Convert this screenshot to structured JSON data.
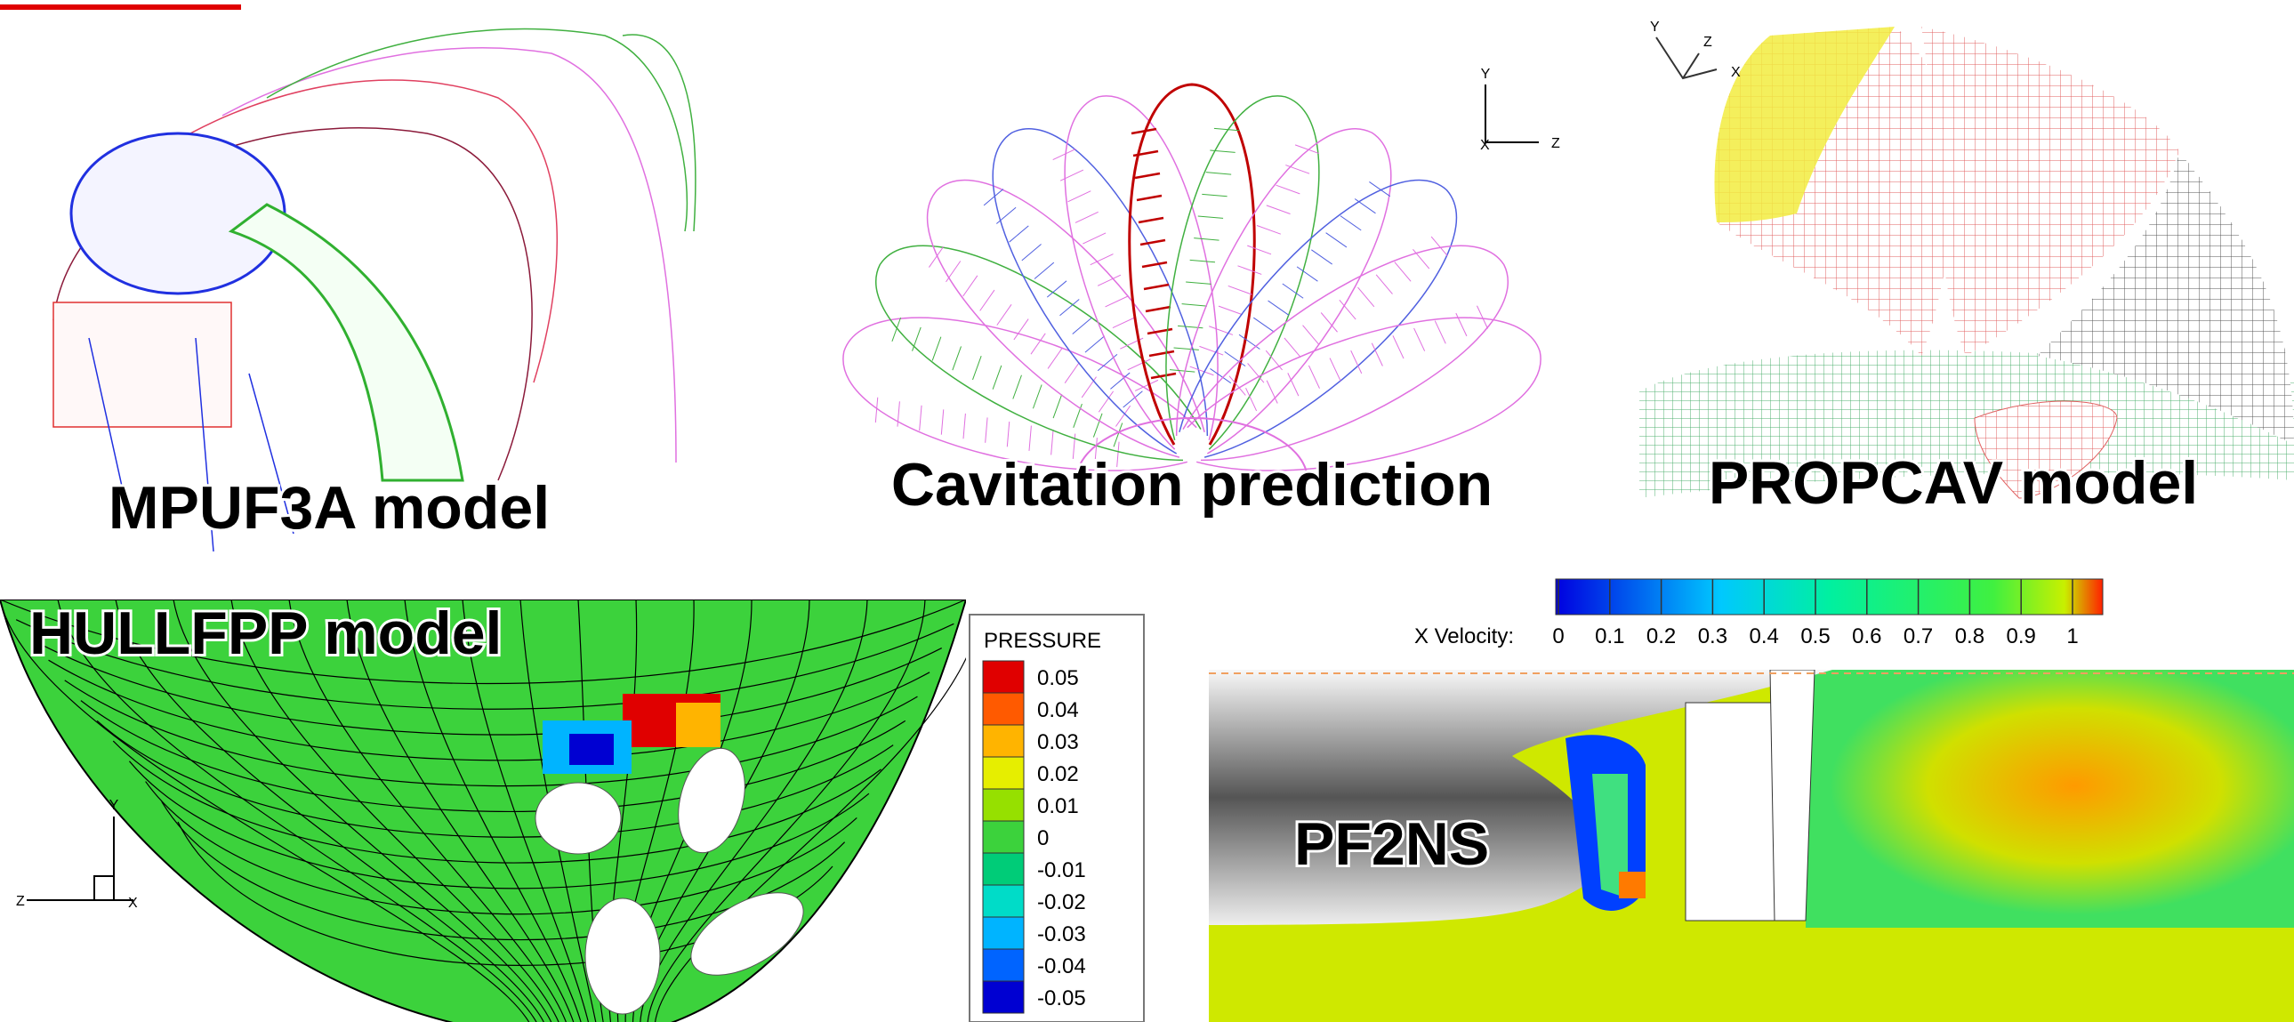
{
  "panels": {
    "mpuf3a": {
      "label": "MPUF3A model"
    },
    "cavitation": {
      "label": "Cavitation prediction"
    },
    "propcav": {
      "label": "PROPCAV model"
    },
    "hullfpp": {
      "label": "HULLFPP model"
    },
    "pf2ns": {
      "label": "PF2NS"
    }
  },
  "pressure_legend": {
    "title": "PRESSURE",
    "entries": [
      {
        "value": 0.05,
        "color": "#e00000"
      },
      {
        "value": 0.04,
        "color": "#ff5a00"
      },
      {
        "value": 0.03,
        "color": "#ffb400"
      },
      {
        "value": 0.02,
        "color": "#e6ee00"
      },
      {
        "value": 0.01,
        "color": "#96e000"
      },
      {
        "value": 0,
        "color": "#3cd23c"
      },
      {
        "value": -0.01,
        "color": "#00cc78"
      },
      {
        "value": -0.02,
        "color": "#00dcc8"
      },
      {
        "value": -0.03,
        "color": "#00b4ff"
      },
      {
        "value": -0.04,
        "color": "#0064ff"
      },
      {
        "value": -0.05,
        "color": "#0000d2"
      }
    ]
  },
  "velocity_legend": {
    "title": "X Velocity:",
    "ticks": [
      0,
      0.1,
      0.2,
      0.3,
      0.4,
      0.5,
      0.6,
      0.7,
      0.8,
      0.9,
      1
    ]
  },
  "axes": {
    "cavitation": {
      "y": "Y",
      "z": "Z",
      "x": "X"
    },
    "propcav": {
      "y": "Y",
      "z": "Z",
      "x": "X"
    },
    "hullfpp": {
      "y": "Y",
      "z": "Z",
      "x": "X"
    }
  }
}
